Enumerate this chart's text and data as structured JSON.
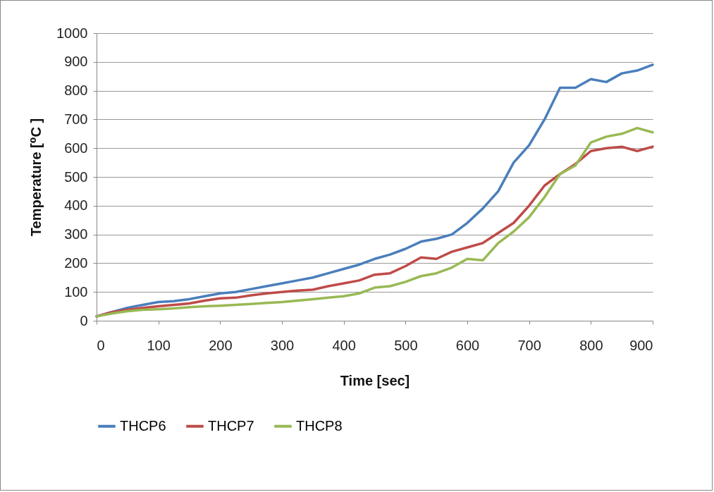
{
  "chart_data": {
    "type": "line",
    "xlabel": "Time [sec]",
    "ylabel": "Temperature [⁰C ]",
    "x": [
      0,
      25,
      50,
      75,
      100,
      125,
      150,
      175,
      200,
      225,
      250,
      275,
      300,
      325,
      350,
      375,
      400,
      425,
      450,
      475,
      500,
      525,
      550,
      575,
      600,
      625,
      650,
      675,
      700,
      725,
      750,
      775,
      800,
      825,
      850,
      875,
      900
    ],
    "series": [
      {
        "name": "THCP6",
        "color": "#4a7ebb",
        "values": [
          15,
          30,
          45,
          55,
          65,
          68,
          75,
          85,
          95,
          100,
          110,
          120,
          130,
          140,
          150,
          165,
          180,
          195,
          215,
          230,
          250,
          275,
          285,
          300,
          340,
          390,
          450,
          550,
          610,
          700,
          810,
          810,
          840,
          830,
          860,
          870,
          890
        ]
      },
      {
        "name": "THCP7",
        "color": "#be4b48",
        "values": [
          15,
          30,
          38,
          45,
          50,
          55,
          60,
          70,
          78,
          80,
          88,
          95,
          100,
          105,
          108,
          120,
          130,
          140,
          160,
          165,
          190,
          220,
          215,
          240,
          255,
          270,
          305,
          340,
          400,
          470,
          510,
          545,
          590,
          600,
          605,
          590,
          605
        ]
      },
      {
        "name": "THCP8",
        "color": "#98b954",
        "values": [
          15,
          25,
          33,
          38,
          40,
          43,
          47,
          50,
          52,
          55,
          58,
          62,
          65,
          70,
          75,
          80,
          85,
          95,
          115,
          120,
          135,
          155,
          165,
          185,
          215,
          210,
          270,
          310,
          360,
          430,
          510,
          540,
          620,
          640,
          650,
          670,
          655
        ]
      }
    ],
    "xlim": [
      0,
      900
    ],
    "xticks": [
      0,
      100,
      200,
      300,
      400,
      500,
      600,
      700,
      800,
      900
    ],
    "ylim": [
      0,
      1000
    ],
    "yticks": [
      0,
      100,
      200,
      300,
      400,
      500,
      600,
      700,
      800,
      900,
      1000
    ],
    "grid": "y",
    "legend": "bottom",
    "line_style": "solid",
    "marker": "none"
  }
}
